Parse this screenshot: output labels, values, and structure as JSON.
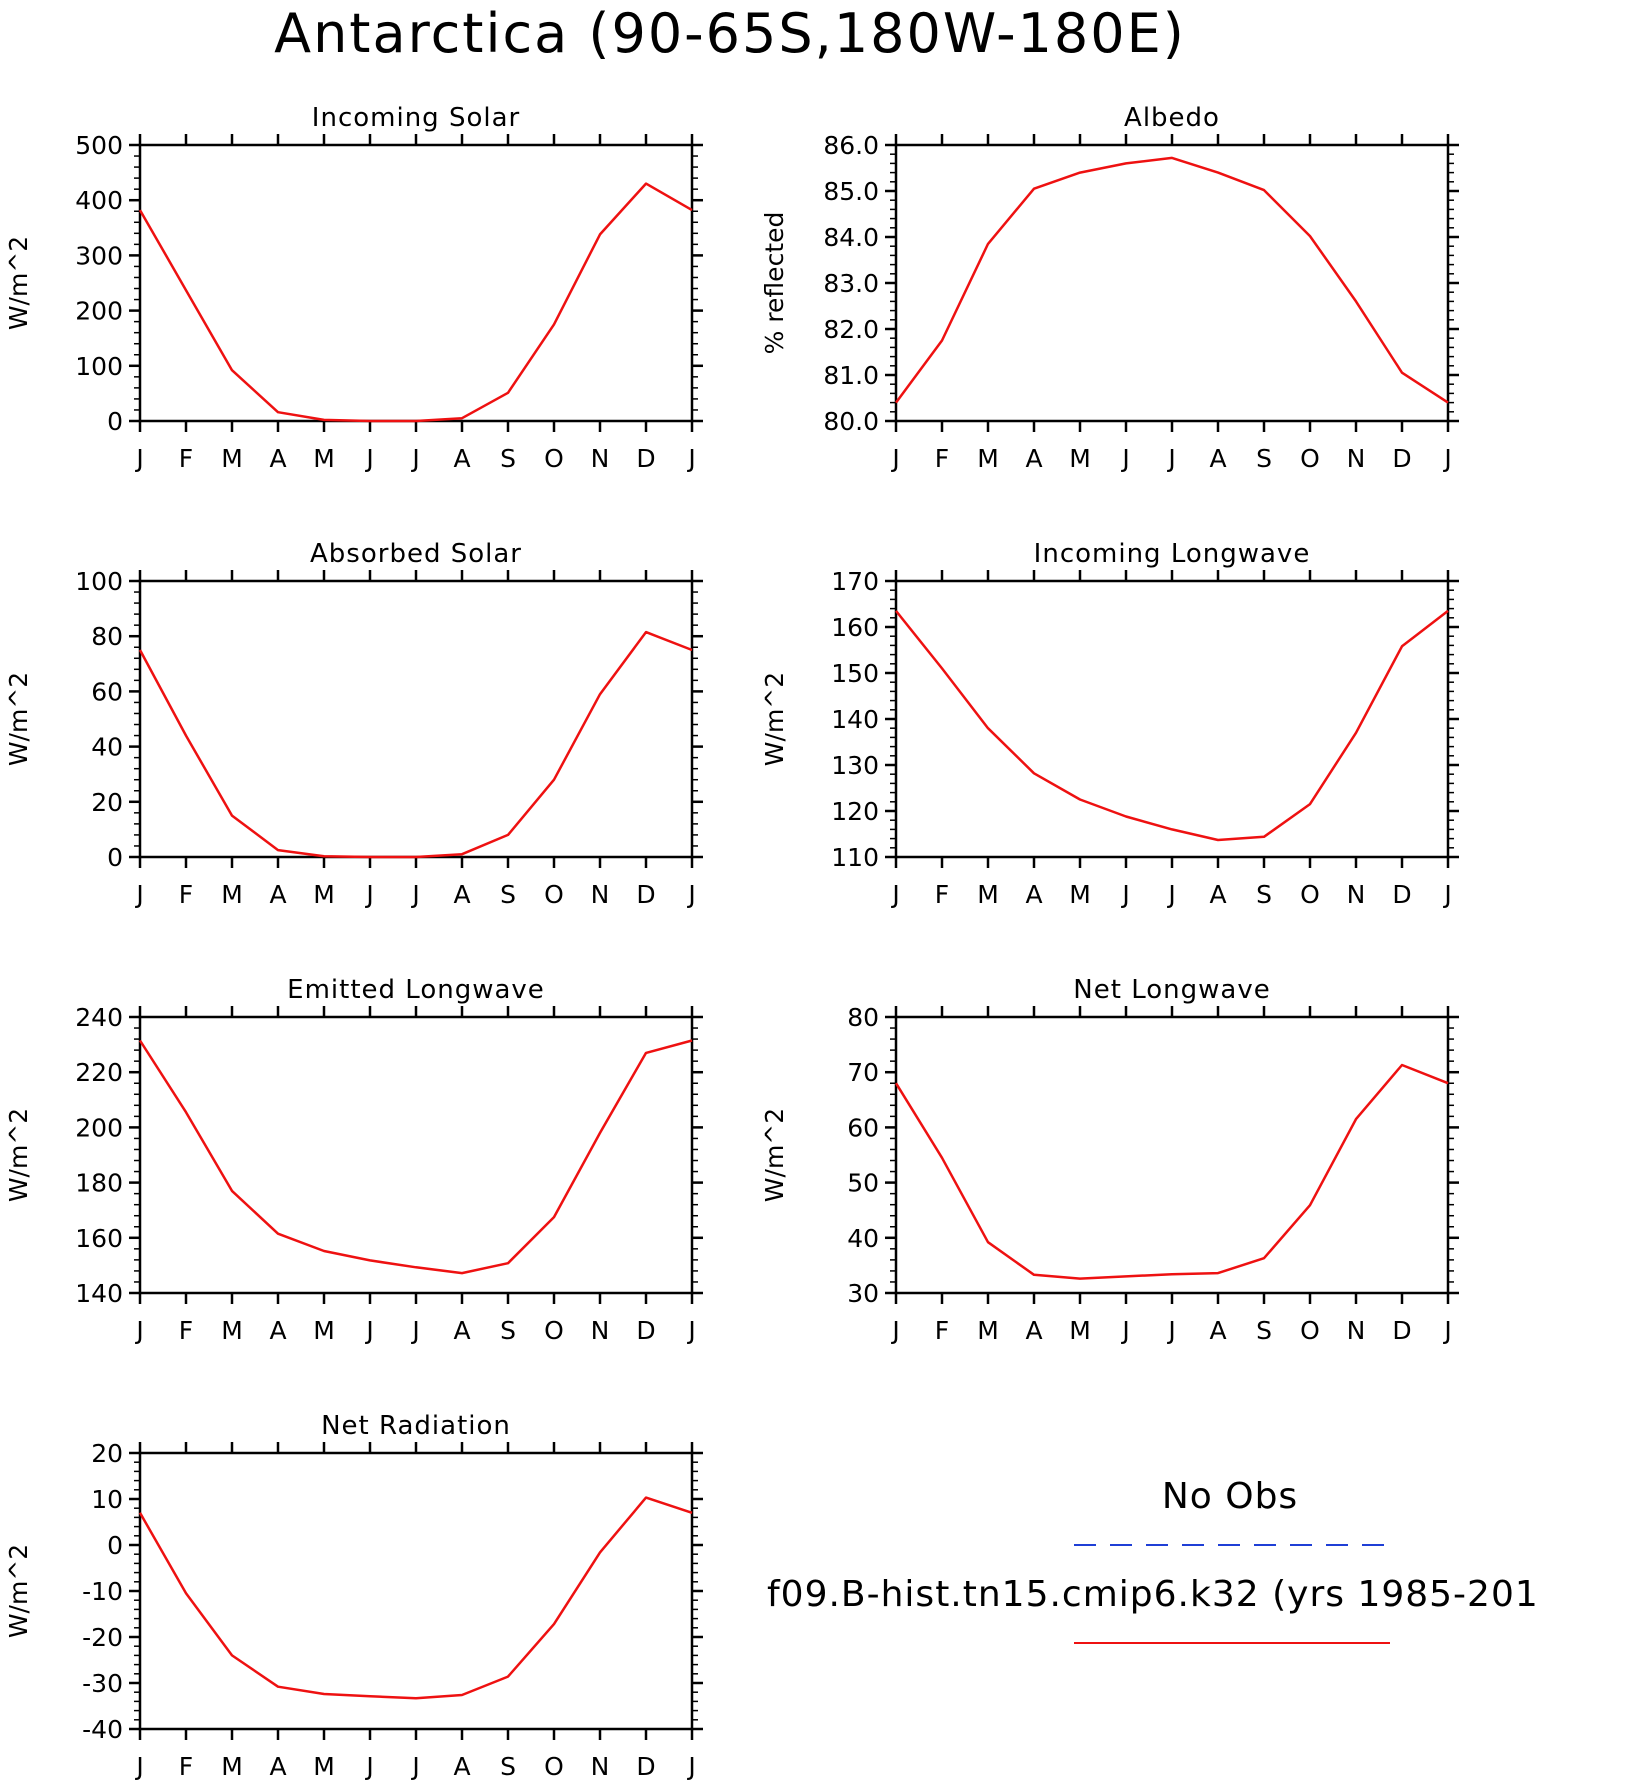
{
  "page": {
    "title": "Antarctica (90-65S,180W-180E)"
  },
  "months": [
    "J",
    "F",
    "M",
    "A",
    "M",
    "J",
    "J",
    "A",
    "S",
    "O",
    "N",
    "D",
    "J"
  ],
  "legend": {
    "obs_label": "No Obs",
    "obs_color": "#1f3fd6",
    "model_label": "f09.B-hist.tn15.cmip6.k32 (yrs 1985-201",
    "model_color": "#ee1111"
  },
  "chart_data": [
    {
      "type": "line",
      "title": "Incoming Solar",
      "ylabel": "W/m^2",
      "ylim": [
        0,
        500
      ],
      "yticks": [
        0,
        100,
        200,
        300,
        400,
        500
      ],
      "ytick_labels": [
        "0",
        "100",
        "200",
        "300",
        "400",
        "500"
      ],
      "series": [
        {
          "values": [
            382,
            237,
            92,
            16,
            2,
            0,
            0,
            5,
            51,
            175,
            338,
            430,
            382
          ]
        }
      ]
    },
    {
      "type": "line",
      "title": "Albedo",
      "ylabel": "% reflected",
      "ylim": [
        80,
        86
      ],
      "yticks": [
        80,
        81,
        82,
        83,
        84,
        85,
        86
      ],
      "ytick_labels": [
        "80.0",
        "81.0",
        "82.0",
        "83.0",
        "84.0",
        "85.0",
        "86.0"
      ],
      "series": [
        {
          "values": [
            80.4,
            81.75,
            83.85,
            85.05,
            85.4,
            85.6,
            85.72,
            85.4,
            85.02,
            84.02,
            82.6,
            81.05,
            80.4
          ]
        }
      ]
    },
    {
      "type": "line",
      "title": "Absorbed Solar",
      "ylabel": "W/m^2",
      "ylim": [
        0,
        100
      ],
      "yticks": [
        0,
        20,
        40,
        60,
        80,
        100
      ],
      "ytick_labels": [
        "0",
        "20",
        "40",
        "60",
        "80",
        "100"
      ],
      "series": [
        {
          "values": [
            75,
            44,
            15,
            2.5,
            0.3,
            0,
            0,
            1,
            8,
            28,
            59,
            81.5,
            75
          ]
        }
      ]
    },
    {
      "type": "line",
      "title": "Incoming Longwave",
      "ylabel": "W/m^2",
      "ylim": [
        110,
        170
      ],
      "yticks": [
        110,
        120,
        130,
        140,
        150,
        160,
        170
      ],
      "ytick_labels": [
        "110",
        "120",
        "130",
        "140",
        "150",
        "160",
        "170"
      ],
      "series": [
        {
          "values": [
            163.5,
            151,
            138,
            128.2,
            122.5,
            118.8,
            116,
            113.7,
            114.4,
            121.5,
            137,
            155.8,
            163.5
          ]
        }
      ]
    },
    {
      "type": "line",
      "title": "Emitted Longwave",
      "ylabel": "W/m^2",
      "ylim": [
        140,
        240
      ],
      "yticks": [
        140,
        160,
        180,
        200,
        220,
        240
      ],
      "ytick_labels": [
        "140",
        "160",
        "180",
        "200",
        "220",
        "240"
      ],
      "series": [
        {
          "values": [
            231.5,
            205.5,
            177,
            161.5,
            155.2,
            151.8,
            149.3,
            147.2,
            150.8,
            167.5,
            198,
            227,
            231.5
          ]
        }
      ]
    },
    {
      "type": "line",
      "title": "Net Longwave",
      "ylabel": "W/m^2",
      "ylim": [
        30,
        80
      ],
      "yticks": [
        30,
        40,
        50,
        60,
        70,
        80
      ],
      "ytick_labels": [
        "30",
        "40",
        "50",
        "60",
        "70",
        "80"
      ],
      "series": [
        {
          "values": [
            68,
            54.5,
            39.2,
            33.3,
            32.6,
            33,
            33.4,
            33.6,
            36.3,
            45.9,
            61.5,
            71.3,
            68
          ]
        }
      ]
    },
    {
      "type": "line",
      "title": "Net Radiation",
      "ylabel": "W/m^2",
      "ylim": [
        -40,
        20
      ],
      "yticks": [
        -40,
        -30,
        -20,
        -10,
        0,
        10,
        20
      ],
      "ytick_labels": [
        "-40",
        "-30",
        "-20",
        "-10",
        "0",
        "10",
        "20"
      ],
      "series": [
        {
          "values": [
            7,
            -10.5,
            -24,
            -30.8,
            -32.4,
            -32.9,
            -33.3,
            -32.6,
            -28.6,
            -17.2,
            -1.6,
            10.3,
            7
          ]
        }
      ]
    }
  ]
}
